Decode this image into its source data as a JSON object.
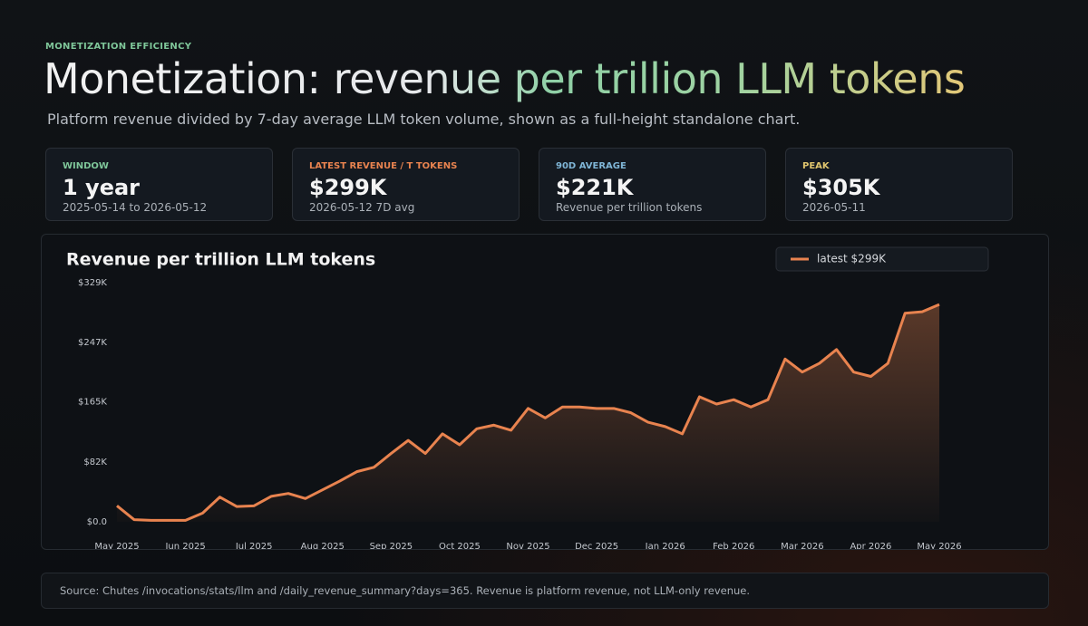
{
  "eyebrow": "MONETIZATION EFFICIENCY",
  "title": "Monetization: revenue per trillion LLM tokens",
  "subtitle": "Platform revenue divided by 7-day average LLM token volume, shown as a full-height standalone chart.",
  "cards": [
    {
      "label": "WINDOW",
      "value": "1 year",
      "sub": "2025-05-14 to 2026-05-12"
    },
    {
      "label": "LATEST REVENUE / T TOKENS",
      "value": "$299K",
      "sub": "2026-05-12 7D avg"
    },
    {
      "label": "90D AVERAGE",
      "value": "$221K",
      "sub": "Revenue per trillion tokens"
    },
    {
      "label": "PEAK",
      "value": "$305K",
      "sub": "2026-05-11"
    }
  ],
  "chart_data": {
    "type": "line",
    "title": "Revenue per trillion LLM tokens",
    "categories": [
      "May 2025",
      null,
      null,
      null,
      "Jun 2025",
      null,
      null,
      null,
      "Jul 2025",
      null,
      null,
      null,
      "Aug 2025",
      null,
      null,
      null,
      "Sep 2025",
      null,
      null,
      null,
      "Oct 2025",
      null,
      null,
      null,
      "Nov 2025",
      null,
      null,
      null,
      "Dec 2025",
      null,
      null,
      null,
      "Jan 2026",
      null,
      null,
      null,
      "Feb 2026",
      null,
      null,
      null,
      "Mar 2026",
      null,
      null,
      null,
      "Apr 2026",
      null,
      null,
      null,
      "May 2026"
    ],
    "series": [
      {
        "name": "latest $299K",
        "color": "#e8834f",
        "values": [
          22000,
          3000,
          2000,
          2000,
          2000,
          12000,
          34000,
          21000,
          22000,
          35000,
          39000,
          32000,
          44000,
          56000,
          69000,
          75000,
          94000,
          112000,
          94000,
          121000,
          106000,
          128000,
          133000,
          126000,
          156000,
          143000,
          158000,
          158000,
          156000,
          156000,
          150000,
          137000,
          131000,
          121000,
          172000,
          162000,
          168000,
          158000,
          168000,
          224000,
          206000,
          218000,
          237000,
          206000,
          200000,
          218000,
          287000,
          289000,
          299000
        ]
      }
    ],
    "ylim": [
      0,
      329000
    ],
    "yticks": [
      {
        "value": 0,
        "label": "$0.0"
      },
      {
        "value": 82000,
        "label": "$82K"
      },
      {
        "value": 165000,
        "label": "$165K"
      },
      {
        "value": 247000,
        "label": "$247K"
      },
      {
        "value": 329000,
        "label": "$329K"
      }
    ],
    "grid": false,
    "legend": "top-right"
  },
  "footer": "Source: Chutes /invocations/stats/llm and /daily_revenue_summary?days=365. Revenue is platform revenue, not LLM-only revenue."
}
